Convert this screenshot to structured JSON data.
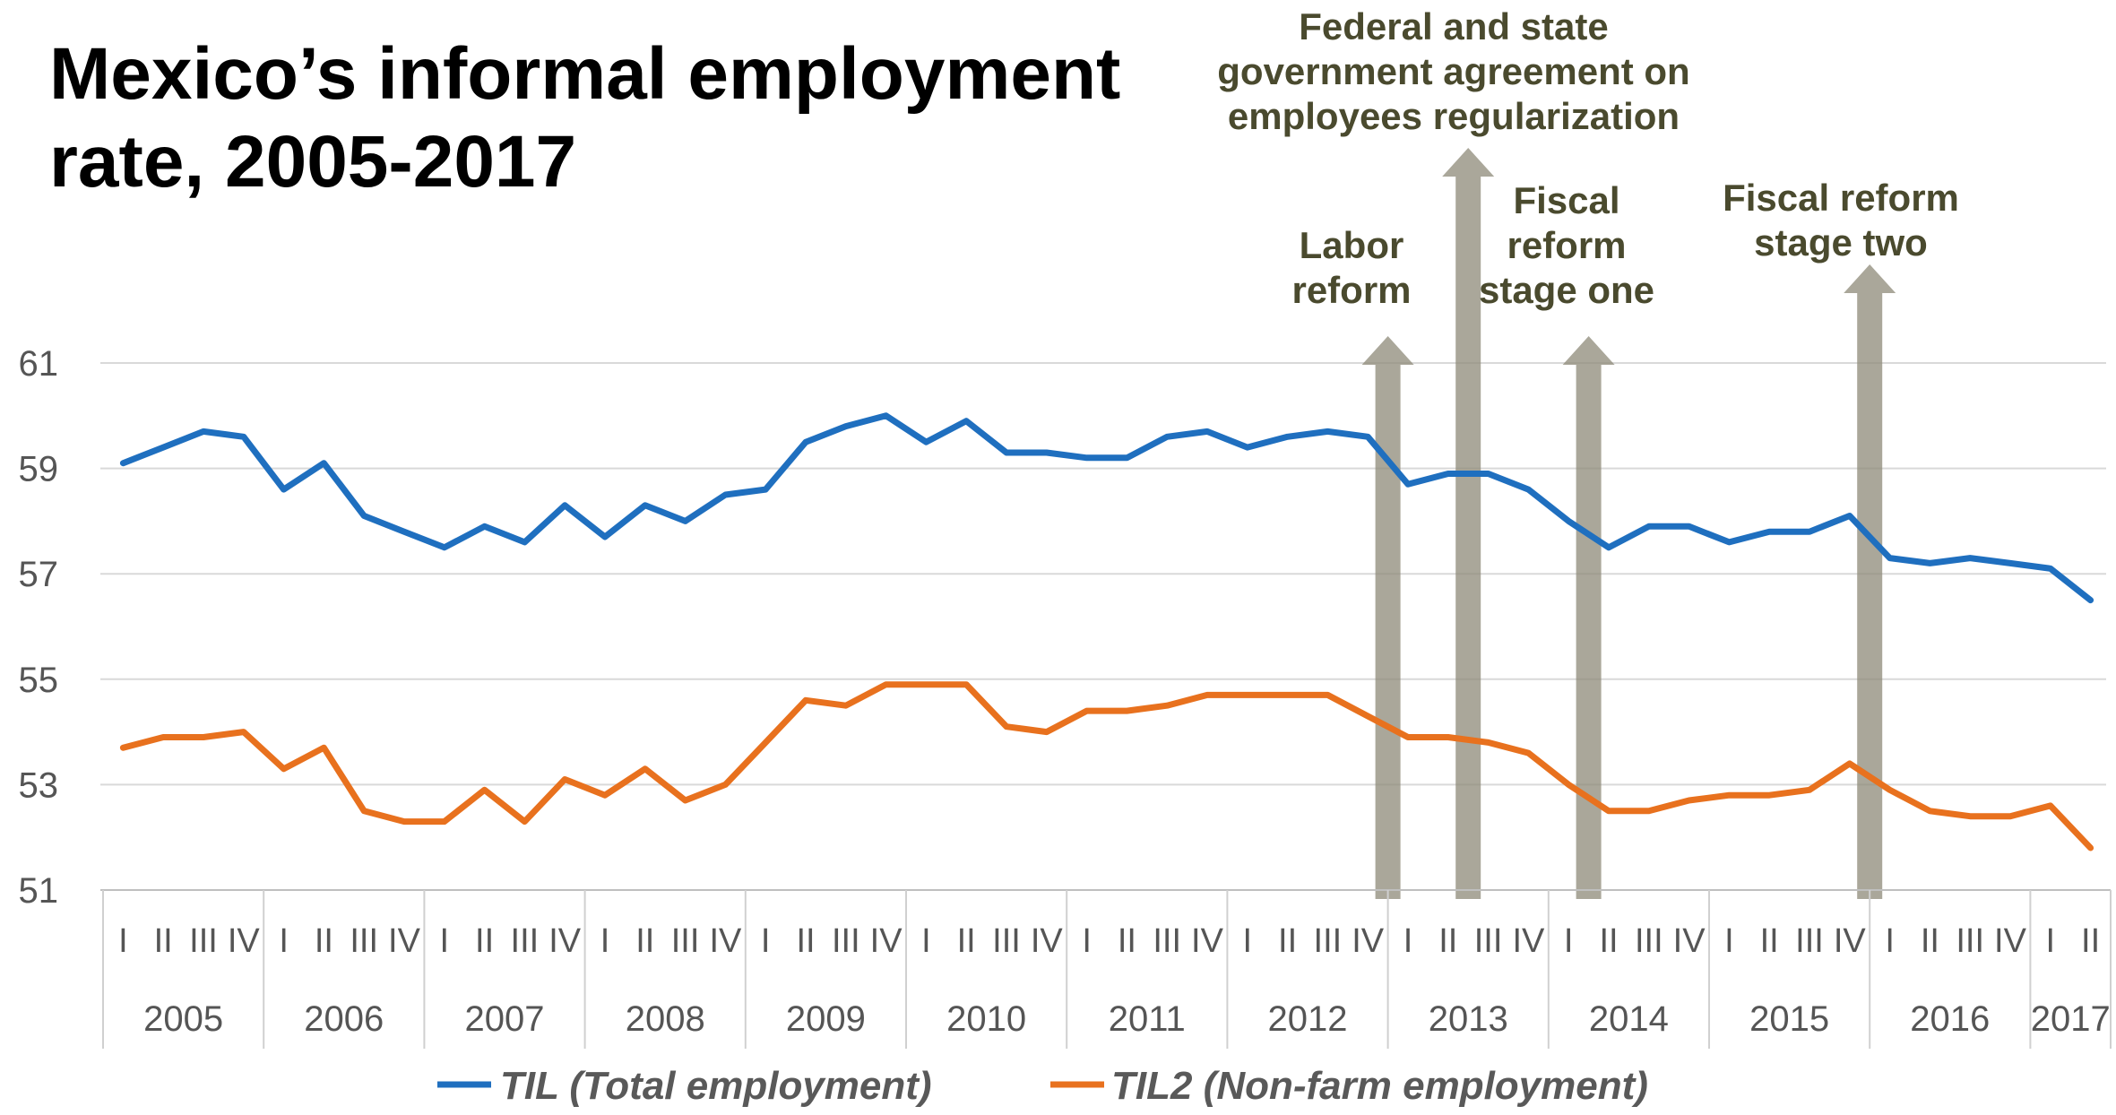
{
  "chart_data": {
    "type": "line",
    "title_lines": [
      "Mexico’s informal employment",
      "rate, 2005-2017"
    ],
    "ylim": [
      51,
      61
    ],
    "yticks": [
      "51",
      "53",
      "55",
      "57",
      "59",
      "61"
    ],
    "grid": "horizontal",
    "legend": "bottom",
    "quarter_labels": [
      "I",
      "II",
      "III",
      "IV"
    ],
    "years": [
      {
        "label": "2005",
        "quarters": 4
      },
      {
        "label": "2006",
        "quarters": 4
      },
      {
        "label": "2007",
        "quarters": 4
      },
      {
        "label": "2008",
        "quarters": 4
      },
      {
        "label": "2009",
        "quarters": 4
      },
      {
        "label": "2010",
        "quarters": 4
      },
      {
        "label": "2011",
        "quarters": 4
      },
      {
        "label": "2012",
        "quarters": 4
      },
      {
        "label": "2013",
        "quarters": 4
      },
      {
        "label": "2014",
        "quarters": 4
      },
      {
        "label": "2015",
        "quarters": 4
      },
      {
        "label": "2016",
        "quarters": 4
      },
      {
        "label": "2017",
        "quarters": 2
      }
    ],
    "series": [
      {
        "name": "TIL (Total employment)",
        "color": "#1f6fbf",
        "values": [
          59.1,
          59.4,
          59.7,
          59.6,
          58.6,
          59.1,
          58.1,
          57.8,
          57.5,
          57.9,
          57.6,
          58.3,
          57.7,
          58.3,
          58.0,
          58.5,
          58.6,
          59.5,
          59.8,
          60.0,
          59.5,
          59.9,
          59.3,
          59.3,
          59.2,
          59.2,
          59.6,
          59.7,
          59.4,
          59.6,
          59.7,
          59.6,
          58.7,
          58.9,
          58.9,
          58.6,
          58.0,
          57.5,
          57.9,
          57.9,
          57.6,
          57.8,
          57.8,
          58.1,
          57.3,
          57.2,
          57.3,
          57.2,
          57.1,
          56.5
        ]
      },
      {
        "name": "TIL2 (Non-farm employment)",
        "color": "#e8711e",
        "values": [
          53.7,
          53.9,
          53.9,
          54.0,
          53.3,
          53.7,
          52.5,
          52.3,
          52.3,
          52.9,
          52.3,
          53.1,
          52.8,
          53.3,
          52.7,
          53.0,
          53.8,
          54.6,
          54.5,
          54.9,
          54.9,
          54.9,
          54.1,
          54.0,
          54.4,
          54.4,
          54.5,
          54.7,
          54.7,
          54.7,
          54.7,
          54.3,
          53.9,
          53.9,
          53.8,
          53.6,
          53.0,
          52.5,
          52.5,
          52.7,
          52.8,
          52.8,
          52.9,
          53.4,
          52.9,
          52.5,
          52.4,
          52.4,
          52.6,
          51.8
        ]
      }
    ],
    "annotations": [
      {
        "lines": [
          "Labor",
          "reform"
        ],
        "at_index": 31
      },
      {
        "lines": [
          "Federal and state",
          "government agreement on",
          "employees regularization"
        ],
        "at_index": 33
      },
      {
        "lines": [
          "Fiscal",
          "reform",
          "stage one"
        ],
        "at_index": 36
      },
      {
        "lines": [
          "Fiscal reform",
          "stage two"
        ],
        "at_index": 43
      }
    ],
    "arrow_color": "#8e8a78"
  }
}
